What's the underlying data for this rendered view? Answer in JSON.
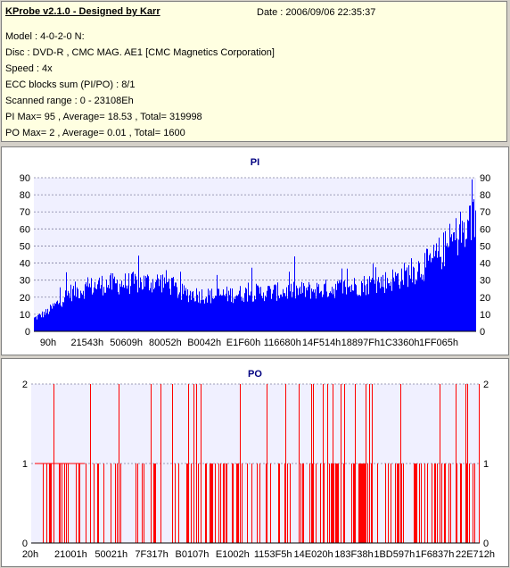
{
  "header": {
    "title": "KProbe v2.1.0 - Designed by Karr",
    "date": "Date : 2006/09/06 22:35:37",
    "lines": [
      "Model : 4-0-2-0 N:",
      "Disc : DVD-R , CMC MAG. AE1 [CMC Magnetics Corporation]",
      "Speed : 4x",
      "ECC blocks sum (PI/PO) : 8/1",
      "Scanned range : 0 - 23108Eh",
      "PI Max= 95 , Average= 18.53 , Total= 319998",
      "PO Max= 2 , Average= 0.01 , Total= 1600"
    ]
  },
  "colors": {
    "panel": "#d4d0c8",
    "info_bg": "#ffffe1",
    "plot_bg": "#f0f0ff",
    "pi_fill": "#0000ff",
    "po_line": "#ff0000",
    "title": "#000080"
  },
  "chart_data": [
    {
      "type": "area",
      "title": "PI",
      "ylim": [
        0,
        90
      ],
      "yticks": [
        0,
        10,
        20,
        30,
        40,
        50,
        60,
        70,
        80,
        90
      ],
      "xticks": [
        "90h",
        "21543h",
        "50609h",
        "80052h",
        "B0042h",
        "E1F60h",
        "116680h",
        "14F514h",
        "18897Fh",
        "1C3360h",
        "1FF065h"
      ],
      "grid": true,
      "profile_x": [
        0,
        0.03,
        0.08,
        0.15,
        0.23,
        0.3,
        0.33,
        0.4,
        0.5,
        0.6,
        0.7,
        0.75,
        0.8,
        0.85,
        0.9,
        0.93,
        0.96,
        0.98,
        1.0
      ],
      "profile_y": [
        8,
        12,
        24,
        29,
        30,
        31,
        24,
        22,
        24,
        25,
        27,
        29,
        31,
        36,
        43,
        51,
        60,
        67,
        72
      ],
      "max": 95,
      "average": 18.53
    },
    {
      "type": "line",
      "title": "PO",
      "ylim": [
        0,
        2
      ],
      "yticks": [
        0,
        1,
        2
      ],
      "xticks": [
        "20h",
        "21001h",
        "50021h",
        "7F317h",
        "B0107h",
        "E1002h",
        "1153F5h",
        "14E020h",
        "183F38h",
        "1BD597h",
        "1F6837h",
        "22E712h"
      ],
      "grid": true,
      "max": 2,
      "average": 0.01
    }
  ]
}
